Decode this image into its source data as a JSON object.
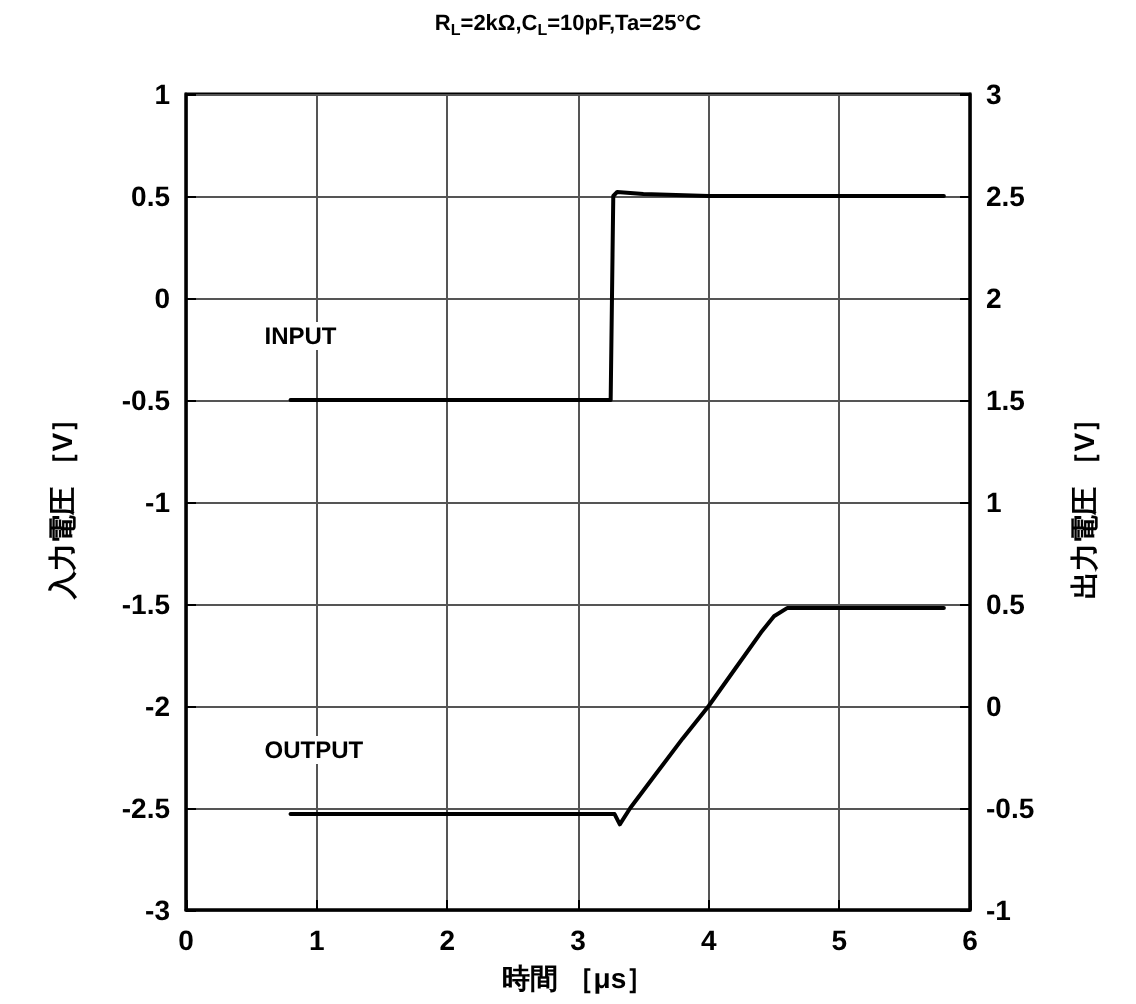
{
  "chart_data": {
    "type": "line",
    "title": "R$_{L}$=2kΩ,C$_{L}$=10pF,Ta=25°C",
    "xlabel": "時間 ［μs］",
    "ylabel": "入力電圧 ［V］",
    "y2label": "出力電圧 ［V］",
    "series": [
      {
        "name": "INPUT",
        "color": "#000000",
        "x": [
          0.8,
          3.25,
          3.27,
          3.3,
          3.5,
          4,
          5,
          5.8
        ],
        "values": [
          -0.5,
          -0.5,
          0.5,
          0.52,
          0.51,
          0.5,
          0.5,
          0.5
        ]
      },
      {
        "name": "OUTPUT",
        "color": "#000000",
        "axis": "y2",
        "x": [
          0.8,
          2,
          3.28,
          3.32,
          3.4,
          3.6,
          3.8,
          4,
          4.2,
          4.4,
          4.5,
          4.6,
          4.7,
          5,
          5.8
        ],
        "values": [
          -0.53,
          -0.53,
          -0.53,
          -0.58,
          -0.5,
          -0.33,
          -0.16,
          0.0,
          0.18,
          0.36,
          0.44,
          0.48,
          0.48,
          0.48,
          0.48
        ]
      }
    ],
    "xlim": [
      0,
      6
    ],
    "xticks": [
      0,
      1,
      2,
      3,
      4,
      5,
      6
    ],
    "ylim": [
      -3,
      1
    ],
    "yticks": [
      -3,
      -2.5,
      -2,
      -1.5,
      -1,
      -0.5,
      0,
      0.5,
      1
    ],
    "y2lim": [
      -1,
      3
    ],
    "y2ticks": [
      -1,
      -0.5,
      0,
      0.5,
      1,
      1.5,
      2,
      2.5,
      3
    ],
    "grid": true,
    "marker": "none",
    "line_style": "solid"
  }
}
